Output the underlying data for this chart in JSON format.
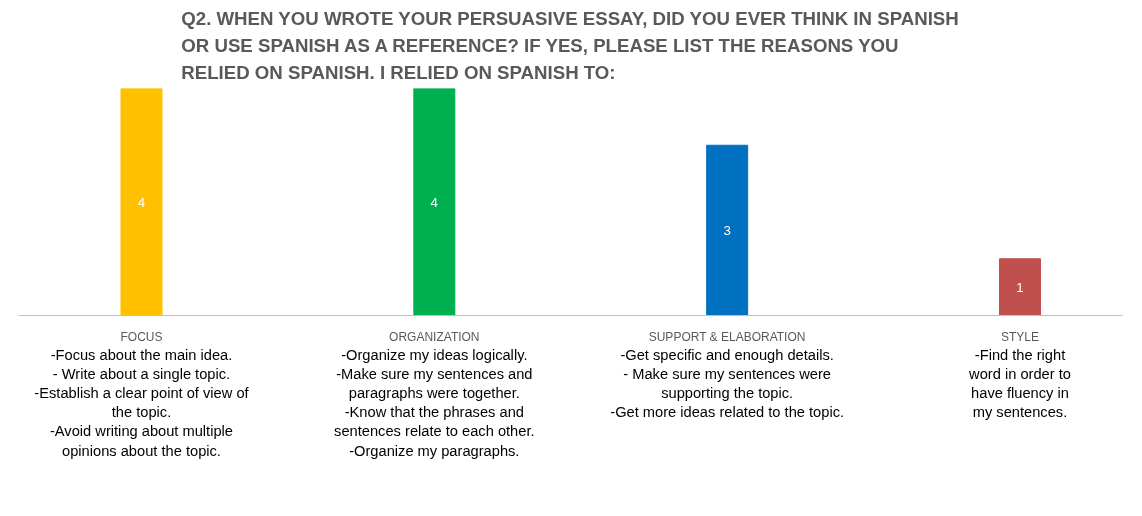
{
  "chart_data": {
    "type": "bar",
    "title": "Q2. WHEN YOU WROTE YOUR PERSUASIVE ESSAY, DID YOU EVER THINK IN SPANISH OR USE SPANISH AS A REFERENCE? IF YES, PLEASE LIST THE REASONS YOU RELIED ON SPANISH. I RELIED ON SPANISH TO:",
    "categories": [
      "FOCUS",
      "ORGANIZATION",
      "SUPPORT & ELABORATION",
      "STYLE"
    ],
    "values": [
      4,
      4,
      3,
      1
    ],
    "colors": [
      "#ffc000",
      "#00b050",
      "#0070c0",
      "#c0504d"
    ],
    "tick_labels": "x",
    "data_labels": true,
    "grid": false,
    "annotations": [
      "-Focus about the main idea.\n- Write about a single topic.\n-Establish a clear point of view of\nthe topic.\n-Avoid writing about multiple\nopinions about the topic.",
      "-Organize my ideas logically.\n-Make sure my sentences and\nparagraphs were together.\n-Know that the phrases and\nsentences relate to each other.\n-Organize my paragraphs.",
      "-Get specific and enough details.\n- Make sure my sentences were\nsupporting the topic.\n-Get more ideas related to the topic.",
      "-Find the right\nword in order to\nhave fluency in\nmy sentences."
    ]
  }
}
